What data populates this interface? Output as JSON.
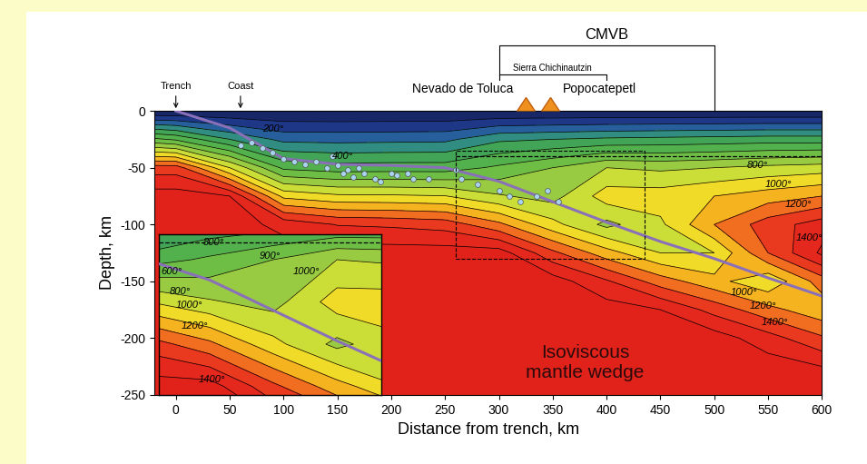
{
  "chart_data": {
    "type": "contour",
    "xlabel": "Distance from trench, km",
    "ylabel": "Depth, km",
    "xlim": [
      -20,
      600
    ],
    "ylim": [
      -250,
      0
    ],
    "xticks": [
      0,
      50,
      100,
      150,
      200,
      250,
      300,
      350,
      400,
      450,
      500,
      550,
      600
    ],
    "yticks": [
      -250,
      -200,
      -150,
      -100,
      -50,
      0
    ],
    "x": [
      -20,
      0,
      50,
      100,
      150,
      200,
      250,
      300,
      350,
      400,
      450,
      500,
      550,
      600
    ],
    "depth": [
      0,
      -25,
      -50,
      -75,
      -100,
      -125,
      -150,
      -175,
      -200,
      -225,
      -250
    ],
    "temperature": [
      [
        0,
        620,
        1250,
        1450,
        1450,
        1450,
        1450,
        1450,
        1450,
        1450,
        1450
      ],
      [
        0,
        583,
        1250,
        1450,
        1450,
        1450,
        1450,
        1450,
        1450,
        1450,
        1450
      ],
      [
        0,
        400,
        900,
        1400,
        1450,
        1450,
        1450,
        1450,
        1450,
        1450,
        1450
      ],
      [
        0,
        270,
        577,
        972,
        1368,
        1450,
        1450,
        1450,
        1450,
        1450,
        1450
      ],
      [
        0,
        265,
        545,
        920,
        1295,
        1450,
        1450,
        1450,
        1450,
        1450,
        1450
      ],
      [
        0,
        270,
        550,
        916,
        1283,
        1450,
        1450,
        1450,
        1450,
        1450,
        1450
      ],
      [
        0,
        275,
        550,
        904,
        1258,
        1450,
        1450,
        1450,
        1450,
        1450,
        1450
      ],
      [
        0,
        380,
        620,
        812,
        1125,
        1450,
        1450,
        1450,
        1450,
        1450,
        1450
      ],
      [
        0,
        400,
        700,
        760,
        933,
        1225,
        1450,
        1450,
        1450,
        1450,
        1450
      ],
      [
        0,
        420,
        800,
        950,
        772,
        1042,
        1313,
        1450,
        1450,
        1450,
        1450
      ],
      [
        0,
        430,
        780,
        950,
        880,
        900,
        1150,
        1400,
        1450,
        1450,
        1450
      ],
      [
        0,
        440,
        800,
        1000,
        1100,
        900,
        1033,
        1263,
        1450,
        1450,
        1450
      ],
      [
        0,
        450,
        830,
        1050,
        1250,
        1200,
        920,
        1133,
        1342,
        1450,
        1450
      ],
      [
        0,
        450,
        850,
        1100,
        1350,
        1420,
        1150,
        1030,
        1215,
        1400,
        1450
      ]
    ],
    "levels": [
      0,
      100,
      200,
      300,
      400,
      500,
      600,
      700,
      800,
      900,
      1000,
      1100,
      1200,
      1300,
      1400,
      1500
    ],
    "contour_labels": [
      {
        "text": "200°",
        "x": 90,
        "y": -16
      },
      {
        "text": "400°",
        "x": 155,
        "y": -40
      },
      {
        "text": "800°",
        "x": 540,
        "y": -48
      },
      {
        "text": "1000°",
        "x": 560,
        "y": -65
      },
      {
        "text": "1200°",
        "x": 578,
        "y": -82
      },
      {
        "text": "1400°",
        "x": 588,
        "y": -112
      },
      {
        "text": "1000°",
        "x": 528,
        "y": -160
      },
      {
        "text": "1200°",
        "x": 545,
        "y": -172
      },
      {
        "text": "1400°",
        "x": 556,
        "y": -186
      }
    ],
    "slab_top": {
      "color": "#8a70b8",
      "x": [
        0,
        50,
        100,
        150,
        200,
        250,
        300,
        350,
        400,
        450,
        500,
        550,
        600
      ],
      "y": [
        0,
        -15,
        -42,
        -47,
        -48,
        -50,
        -62,
        -80,
        -98,
        -115,
        -130,
        -147,
        -163
      ]
    },
    "earthquakes": {
      "color": "#a8d4f0",
      "marker": "o",
      "x": [
        60,
        70,
        80,
        90,
        100,
        110,
        120,
        130,
        140,
        145,
        150,
        155,
        160,
        165,
        170,
        175,
        185,
        190,
        200,
        205,
        215,
        220,
        235,
        260,
        265,
        280,
        300,
        310,
        320,
        335,
        345,
        355
      ],
      "y": [
        -30,
        -28,
        -33,
        -37,
        -42,
        -45,
        -47,
        -45,
        -50,
        -40,
        -48,
        -55,
        -52,
        -58,
        -50,
        -55,
        -60,
        -62,
        -55,
        -57,
        -55,
        -60,
        -60,
        -52,
        -60,
        -65,
        -70,
        -75,
        -80,
        -75,
        -70,
        -80
      ]
    },
    "dashed_line": {
      "x": [
        260,
        600
      ],
      "y": [
        -40,
        -40
      ]
    },
    "inset": {
      "xlim": [
        260,
        435
      ],
      "ylim": [
        -130,
        -35
      ],
      "tick_labels": false,
      "contour_labels": [
        {
          "text": "800°",
          "x": 303,
          "y": -40
        },
        {
          "text": "900°",
          "x": 347,
          "y": -48
        },
        {
          "text": "1000°",
          "x": 376,
          "y": -57
        },
        {
          "text": "600°",
          "x": 270,
          "y": -57
        },
        {
          "text": "800°",
          "x": 277,
          "y": -69
        },
        {
          "text": "1000°",
          "x": 284,
          "y": -77
        },
        {
          "text": "1200°",
          "x": 288,
          "y": -89
        },
        {
          "text": "1400°",
          "x": 302,
          "y": -121
        }
      ]
    },
    "annotations": [
      {
        "text": "Trench",
        "x": 0
      },
      {
        "text": "Coast",
        "x": 60
      }
    ],
    "volcanoes": [
      {
        "name": "Nevado de Toluca",
        "x": 325
      },
      {
        "name": "Popocatepetl",
        "x": 348
      }
    ],
    "brackets": [
      {
        "text": "CMVB",
        "x": [
          300,
          500
        ]
      },
      {
        "text": "Sierra Chichinautzin",
        "x": [
          300,
          400
        ]
      }
    ],
    "region_label": {
      "text": "Isoviscous\nmantle wedge",
      "x": 380,
      "y": -222
    }
  }
}
